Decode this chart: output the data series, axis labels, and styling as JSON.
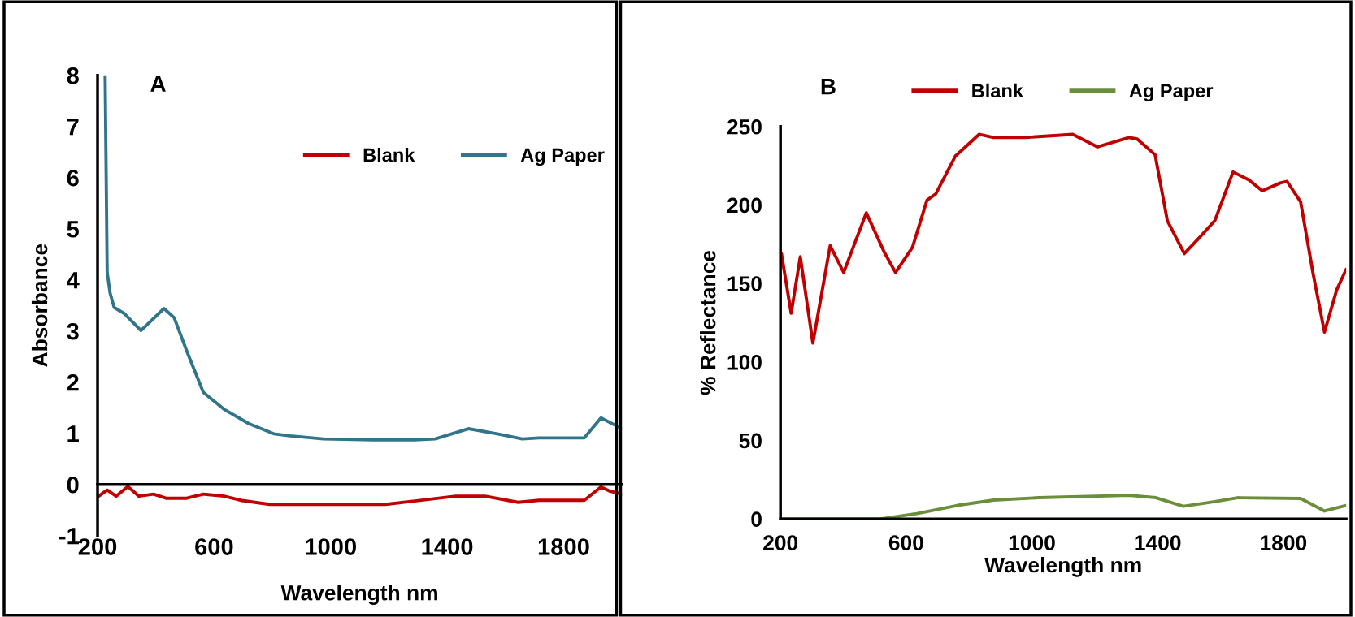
{
  "chart_data": [
    {
      "type": "line",
      "title": "A",
      "xlabel": "Wavelength nm",
      "ylabel": "Absorbance",
      "xlim": [
        200,
        2000
      ],
      "ylim": [
        -1,
        8
      ],
      "xticks": [
        200,
        600,
        1000,
        1400,
        1800
      ],
      "yticks": [
        -1,
        0,
        1,
        2,
        3,
        4,
        5,
        6,
        7,
        8
      ],
      "grid": false,
      "legend": "top right",
      "marker": "none",
      "line_style": "solid",
      "series": [
        {
          "name": "Blank",
          "color": "#c00000",
          "x": [
            204,
            233,
            264,
            304,
            342,
            392,
            435,
            506,
            563,
            634,
            691,
            790,
            1189,
            1430,
            1530,
            1644,
            1715,
            1871,
            1928,
            1957,
            2000
          ],
          "values": [
            -0.23,
            -0.11,
            -0.23,
            -0.04,
            -0.23,
            -0.19,
            -0.27,
            -0.27,
            -0.19,
            -0.23,
            -0.31,
            -0.39,
            -0.39,
            -0.23,
            -0.23,
            -0.35,
            -0.31,
            -0.31,
            -0.05,
            -0.13,
            -0.19
          ]
        },
        {
          "name": "Ag Paper",
          "color": "#31758a",
          "x": [
            226,
            233,
            243,
            257,
            292,
            349,
            428,
            463,
            506,
            563,
            634,
            719,
            805,
            861,
            975,
            1146,
            1288,
            1359,
            1473,
            1572,
            1658,
            1715,
            1871,
            1928,
            2000
          ],
          "values": [
            8.0,
            4.15,
            3.74,
            3.46,
            3.34,
            3.01,
            3.44,
            3.26,
            2.61,
            1.8,
            1.47,
            1.19,
            0.99,
            0.95,
            0.89,
            0.87,
            0.87,
            0.89,
            1.09,
            0.99,
            0.89,
            0.91,
            0.91,
            1.3,
            1.09
          ]
        }
      ]
    },
    {
      "type": "line",
      "title": "B",
      "xlabel": "Wavelength nm",
      "ylabel": "% Reflectance",
      "xlim": [
        200,
        2000
      ],
      "ylim": [
        0,
        250
      ],
      "xticks": [
        200,
        600,
        1000,
        1400,
        1800
      ],
      "yticks": [
        0,
        50,
        100,
        150,
        200,
        250
      ],
      "grid": false,
      "legend": "top",
      "marker": "none",
      "line_style": "solid",
      "series": [
        {
          "name": "Blank",
          "color": "#c00000",
          "x": [
            203,
            234,
            263,
            303,
            358,
            401,
            473,
            530,
            566,
            620,
            666,
            694,
            756,
            832,
            878,
            979,
            1130,
            1209,
            1309,
            1335,
            1392,
            1431,
            1485,
            1532,
            1582,
            1640,
            1690,
            1733,
            1790,
            1812,
            1855,
            1895,
            1931,
            1970,
            2000
          ],
          "values": [
            169,
            131,
            167,
            112,
            174,
            157,
            195,
            170,
            157,
            173,
            203,
            207,
            231,
            245,
            243,
            243,
            245,
            237,
            243,
            242,
            232,
            190,
            169,
            179,
            190,
            221,
            216,
            209,
            214,
            215,
            202,
            156,
            119,
            146,
            159
          ]
        },
        {
          "name": "Ag Paper",
          "color": "#6b8e3a",
          "x": [
            200,
            519,
            634,
            763,
            878,
            1022,
            1309,
            1395,
            1482,
            1582,
            1654,
            1855,
            1931,
            2000
          ],
          "values": [
            0,
            0,
            3.4,
            8.6,
            12,
            13.5,
            15,
            13.5,
            8,
            11,
            13.5,
            13,
            5,
            8.6
          ]
        }
      ]
    }
  ]
}
